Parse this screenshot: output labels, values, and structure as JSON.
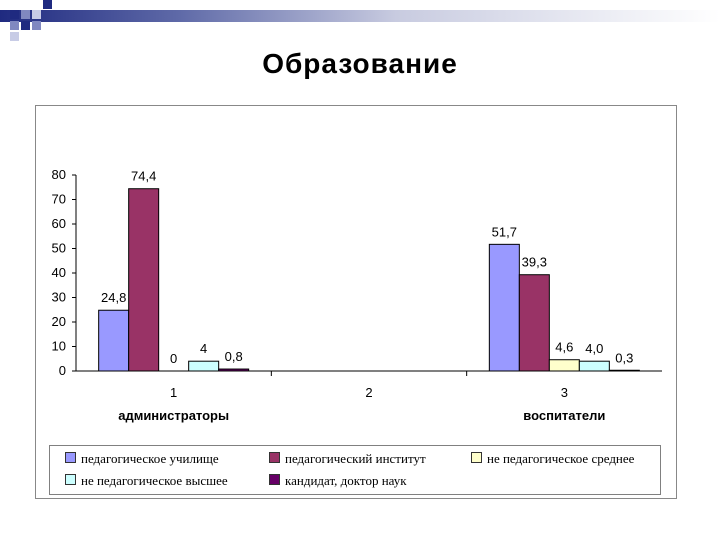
{
  "slide": {
    "title": "Образование"
  },
  "chart_data": {
    "type": "bar",
    "categories": [
      "1",
      "2",
      "3"
    ],
    "category_labels": [
      "администраторы",
      "",
      "воспитатели"
    ],
    "ylim": [
      0,
      80
    ],
    "yticks": [
      0,
      10,
      20,
      30,
      40,
      50,
      60,
      70,
      80
    ],
    "grid": false,
    "legend_position": "bottom",
    "series": [
      {
        "name": "педагогическое училище",
        "color": "#9999ff",
        "values": [
          24.8,
          null,
          51.7
        ],
        "labels": [
          "24,8",
          "",
          "51,7"
        ]
      },
      {
        "name": "педагогический институт",
        "color": "#993366",
        "values": [
          74.4,
          null,
          39.3
        ],
        "labels": [
          "74,4",
          "",
          "39,3"
        ]
      },
      {
        "name": "не педагогическое среднее",
        "color": "#ffffcc",
        "values": [
          0,
          null,
          4.6
        ],
        "labels": [
          "0",
          "",
          "4,6"
        ]
      },
      {
        "name": "не педагогическое высшее",
        "color": "#ccffff",
        "values": [
          4,
          null,
          4.0
        ],
        "labels": [
          "4",
          "",
          "4,0"
        ]
      },
      {
        "name": "кандидат, доктор наук",
        "color": "#660066",
        "values": [
          0.8,
          null,
          0.3
        ],
        "labels": [
          "0,8",
          "",
          "0,3"
        ]
      }
    ]
  }
}
